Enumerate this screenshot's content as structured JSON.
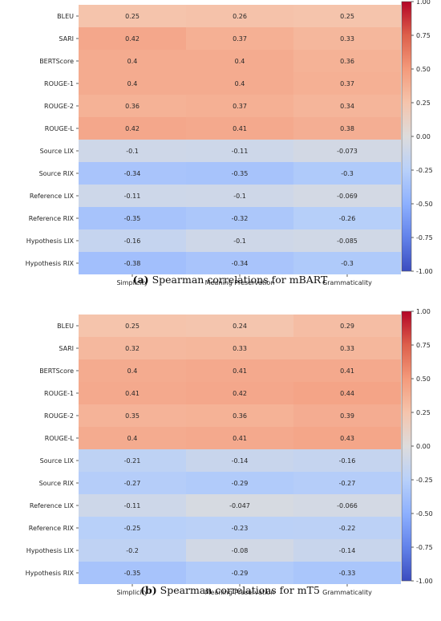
{
  "colormap": {
    "name": "coolwarm",
    "stops": [
      [
        -1.0,
        "#3b4cc0"
      ],
      [
        -0.75,
        "#6282ea"
      ],
      [
        -0.5,
        "#8db0fe"
      ],
      [
        -0.25,
        "#b8d0f9"
      ],
      [
        0.0,
        "#dddcdc"
      ],
      [
        0.25,
        "#f5c4ac"
      ],
      [
        0.5,
        "#f49a7b"
      ],
      [
        0.75,
        "#dd604b"
      ],
      [
        1.0,
        "#b40426"
      ]
    ]
  },
  "chart_data": [
    {
      "type": "heatmap",
      "caption_tag": "(a)",
      "caption_text": "Spearman correlations for mBART",
      "rows": [
        "BLEU",
        "SARI",
        "BERTScore",
        "ROUGE-1",
        "ROUGE-2",
        "ROUGE-L",
        "Source LIX",
        "Source RIX",
        "Reference LIX",
        "Reference RIX",
        "Hypothesis LIX",
        "Hypothesis RIX"
      ],
      "columns": [
        "Simplicity",
        "Meaning Preservation",
        "Grammaticality"
      ],
      "values": [
        [
          0.25,
          0.26,
          0.25
        ],
        [
          0.42,
          0.37,
          0.33
        ],
        [
          0.4,
          0.4,
          0.36
        ],
        [
          0.4,
          0.4,
          0.37
        ],
        [
          0.36,
          0.37,
          0.34
        ],
        [
          0.42,
          0.41,
          0.38
        ],
        [
          -0.1,
          -0.11,
          -0.073
        ],
        [
          -0.34,
          -0.35,
          -0.3
        ],
        [
          -0.11,
          -0.1,
          -0.069
        ],
        [
          -0.35,
          -0.32,
          -0.26
        ],
        [
          -0.16,
          -0.1,
          -0.085
        ],
        [
          -0.38,
          -0.34,
          -0.3
        ]
      ],
      "vmin": -1.0,
      "vmax": 1.0,
      "colorbar_ticks": [
        "1.00",
        "0.75",
        "0.50",
        "0.25",
        "0.00",
        "-0.25",
        "-0.50",
        "-0.75",
        "-1.00"
      ]
    },
    {
      "type": "heatmap",
      "caption_tag": "(b)",
      "caption_text": "Spearman correlations for mT5",
      "rows": [
        "BLEU",
        "SARI",
        "BERTScore",
        "ROUGE-1",
        "ROUGE-2",
        "ROUGE-L",
        "Source LIX",
        "Source RIX",
        "Reference LIX",
        "Reference RIX",
        "Hypothesis LIX",
        "Hypothesis RIX"
      ],
      "columns": [
        "Simplicity",
        "Meaning Preservation",
        "Grammaticality"
      ],
      "values": [
        [
          0.25,
          0.24,
          0.29
        ],
        [
          0.32,
          0.33,
          0.33
        ],
        [
          0.4,
          0.41,
          0.41
        ],
        [
          0.41,
          0.42,
          0.44
        ],
        [
          0.35,
          0.36,
          0.39
        ],
        [
          0.4,
          0.41,
          0.43
        ],
        [
          -0.21,
          -0.14,
          -0.16
        ],
        [
          -0.27,
          -0.29,
          -0.27
        ],
        [
          -0.11,
          -0.047,
          -0.066
        ],
        [
          -0.25,
          -0.23,
          -0.22
        ],
        [
          -0.2,
          -0.08,
          -0.14
        ],
        [
          -0.35,
          -0.29,
          -0.33
        ]
      ],
      "vmin": -1.0,
      "vmax": 1.0,
      "colorbar_ticks": [
        "1.00",
        "0.75",
        "0.50",
        "0.25",
        "0.00",
        "-0.25",
        "-0.50",
        "-0.75",
        "-1.00"
      ]
    }
  ]
}
